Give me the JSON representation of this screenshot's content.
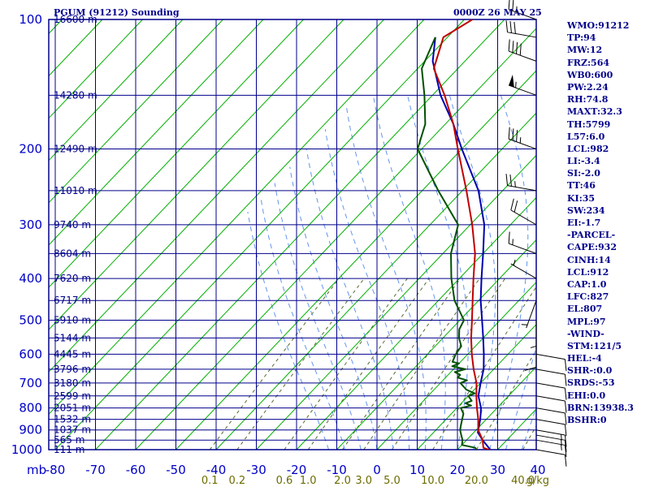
{
  "header": {
    "title_left": "PGUM (91212) Sounding",
    "title_right": "0000Z 26 MAY 25"
  },
  "stats": [
    "WMO:91212",
    "TP:94",
    "MW:12",
    "FRZ:564",
    "WB0:600",
    "PW:2.24",
    "RH:74.8",
    "MAXT:32.3",
    "TH:5799",
    "L57:6.0",
    "LCL:982",
    "LI:-3.4",
    "SI:-2.0",
    "TT:46",
    "KI:35",
    "SW:234",
    "EI:-1.7",
    "-PARCEL-",
    "CAPE:932",
    "CINH:14",
    "LCL:912",
    "CAP:1.0",
    "LFC:827",
    "EL:807",
    "MPL:97",
    "-WIND-",
    "STM:121/5",
    "HEL:-4",
    "SHR-:0.0",
    "SRDS:-53",
    "EHI:0.0",
    "BRN:13938.3",
    "BSHR:0"
  ],
  "colors": {
    "background": "#ffffff",
    "grid_blue": "#00008b",
    "isotherm_green": "#00b000",
    "mixing_ratio": "#556b2f",
    "moist_adiabat": "#6495ed",
    "temperature": "#c00000",
    "dewpoint": "#005000",
    "parcel": "#0000b0",
    "wind_barb": "#000000"
  },
  "chart_data": {
    "type": "line",
    "subtype": "skew-T log-P sounding",
    "xlabel": "",
    "ylabel": "mb",
    "y_scale": "log",
    "ylim": [
      1000,
      100
    ],
    "xlim": [
      -80,
      40
    ],
    "x_unit_label": "g/kg",
    "pressure_ticks": [
      100,
      200,
      300,
      400,
      500,
      600,
      700,
      800,
      900,
      1000
    ],
    "temperature_ticks": [
      -80,
      -70,
      -60,
      -50,
      -40,
      -30,
      -20,
      -10,
      0,
      10,
      20,
      30,
      40
    ],
    "height_labels": [
      {
        "p": 100,
        "label": "16600 m"
      },
      {
        "p": 150,
        "label": "14280 m"
      },
      {
        "p": 200,
        "label": "12490 m"
      },
      {
        "p": 250,
        "label": "11010 m"
      },
      {
        "p": 300,
        "label": "9740 m"
      },
      {
        "p": 350,
        "label": "8604 m"
      },
      {
        "p": 400,
        "label": "7620 m"
      },
      {
        "p": 450,
        "label": "6717 m"
      },
      {
        "p": 500,
        "label": "5910 m"
      },
      {
        "p": 550,
        "label": "5144 m"
      },
      {
        "p": 600,
        "label": "4445 m"
      },
      {
        "p": 650,
        "label": "3796 m"
      },
      {
        "p": 700,
        "label": "3180 m"
      },
      {
        "p": 750,
        "label": "2599 m"
      },
      {
        "p": 800,
        "label": "2051 m"
      },
      {
        "p": 850,
        "label": "1532 m"
      },
      {
        "p": 900,
        "label": "1037 m"
      },
      {
        "p": 950,
        "label": "565 m"
      },
      {
        "p": 1000,
        "label": "111 m"
      }
    ],
    "mixing_ratio_labels": [
      "0.1",
      "0.2",
      "0.6",
      "1.0",
      "2.0",
      "3.0",
      "5.0",
      "10.0",
      "20.0",
      "40.0"
    ],
    "mixing_ratio_values": [
      0.1,
      0.2,
      0.6,
      1.0,
      2.0,
      3.0,
      5.0,
      10.0,
      20.0,
      40.0
    ],
    "series": [
      {
        "key": "temperature",
        "points": [
          [
            1004,
            28.5
          ],
          [
            990,
            26
          ],
          [
            950,
            24
          ],
          [
            900,
            20.5
          ],
          [
            850,
            18
          ],
          [
            800,
            15
          ],
          [
            750,
            12
          ],
          [
            700,
            9
          ],
          [
            650,
            5
          ],
          [
            600,
            1
          ],
          [
            550,
            -3
          ],
          [
            500,
            -7
          ],
          [
            450,
            -11.5
          ],
          [
            400,
            -16.5
          ],
          [
            350,
            -22
          ],
          [
            300,
            -29.5
          ],
          [
            250,
            -39
          ],
          [
            200,
            -51
          ],
          [
            175,
            -58
          ],
          [
            150,
            -67
          ],
          [
            130,
            -76
          ],
          [
            110,
            -81
          ],
          [
            100,
            -78
          ]
        ]
      },
      {
        "key": "dewpoint",
        "points": [
          [
            1004,
            25
          ],
          [
            990,
            24
          ],
          [
            975,
            20
          ],
          [
            950,
            19
          ],
          [
            925,
            17.5
          ],
          [
            900,
            16
          ],
          [
            875,
            15
          ],
          [
            850,
            14
          ],
          [
            825,
            13
          ],
          [
            800,
            11
          ],
          [
            790,
            13
          ],
          [
            780,
            11
          ],
          [
            770,
            12
          ],
          [
            760,
            11
          ],
          [
            750,
            10
          ],
          [
            740,
            11
          ],
          [
            725,
            8
          ],
          [
            700,
            5
          ],
          [
            690,
            6
          ],
          [
            680,
            3
          ],
          [
            670,
            3
          ],
          [
            660,
            1
          ],
          [
            650,
            3
          ],
          [
            640,
            -1
          ],
          [
            630,
            0
          ],
          [
            625,
            -2
          ],
          [
            600,
            -3
          ],
          [
            575,
            -3.5
          ],
          [
            550,
            -6
          ],
          [
            525,
            -8
          ],
          [
            500,
            -9
          ],
          [
            450,
            -16
          ],
          [
            400,
            -22
          ],
          [
            350,
            -28
          ],
          [
            300,
            -33
          ],
          [
            250,
            -46
          ],
          [
            200,
            -61
          ],
          [
            175,
            -65
          ],
          [
            150,
            -72
          ],
          [
            130,
            -79
          ],
          [
            110,
            -83
          ]
        ]
      },
      {
        "key": "parcel",
        "points": [
          [
            1004,
            28.5
          ],
          [
            950,
            24
          ],
          [
            912,
            21
          ],
          [
            850,
            18.5
          ],
          [
            800,
            16
          ],
          [
            750,
            12.5
          ],
          [
            700,
            10
          ],
          [
            650,
            7.5
          ],
          [
            600,
            4
          ],
          [
            550,
            0
          ],
          [
            500,
            -4.5
          ],
          [
            450,
            -9.5
          ],
          [
            400,
            -14.5
          ],
          [
            350,
            -20
          ],
          [
            300,
            -26.5
          ],
          [
            250,
            -36
          ],
          [
            200,
            -50
          ],
          [
            175,
            -58
          ],
          [
            150,
            -68
          ],
          [
            125,
            -78
          ],
          [
            110,
            -83
          ]
        ]
      }
    ],
    "wind_barbs": [
      {
        "p": 1000,
        "dir": 100,
        "spd": 10
      },
      {
        "p": 950,
        "dir": 100,
        "spd": 15
      },
      {
        "p": 925,
        "dir": 100,
        "spd": 15
      },
      {
        "p": 900,
        "dir": 100,
        "spd": 15
      },
      {
        "p": 850,
        "dir": 100,
        "spd": 10
      },
      {
        "p": 800,
        "dir": 100,
        "spd": 10
      },
      {
        "p": 750,
        "dir": 100,
        "spd": 10
      },
      {
        "p": 700,
        "dir": 100,
        "spd": 10
      },
      {
        "p": 650,
        "dir": 100,
        "spd": 10
      },
      {
        "p": 600,
        "dir": 100,
        "spd": 10
      },
      {
        "p": 550,
        "dir": 180,
        "spd": 10
      },
      {
        "p": 500,
        "dir": 180,
        "spd": 5
      },
      {
        "p": 450,
        "dir": 200,
        "spd": 5
      },
      {
        "p": 400,
        "dir": 300,
        "spd": 5
      },
      {
        "p": 350,
        "dir": 290,
        "spd": 15
      },
      {
        "p": 300,
        "dir": 300,
        "spd": 20
      },
      {
        "p": 250,
        "dir": 280,
        "spd": 25
      },
      {
        "p": 200,
        "dir": 290,
        "spd": 35
      },
      {
        "p": 150,
        "dir": 290,
        "spd": 55
      },
      {
        "p": 125,
        "dir": 290,
        "spd": 40
      },
      {
        "p": 110,
        "dir": 280,
        "spd": 30
      },
      {
        "p": 100,
        "dir": 290,
        "spd": 25
      }
    ]
  }
}
